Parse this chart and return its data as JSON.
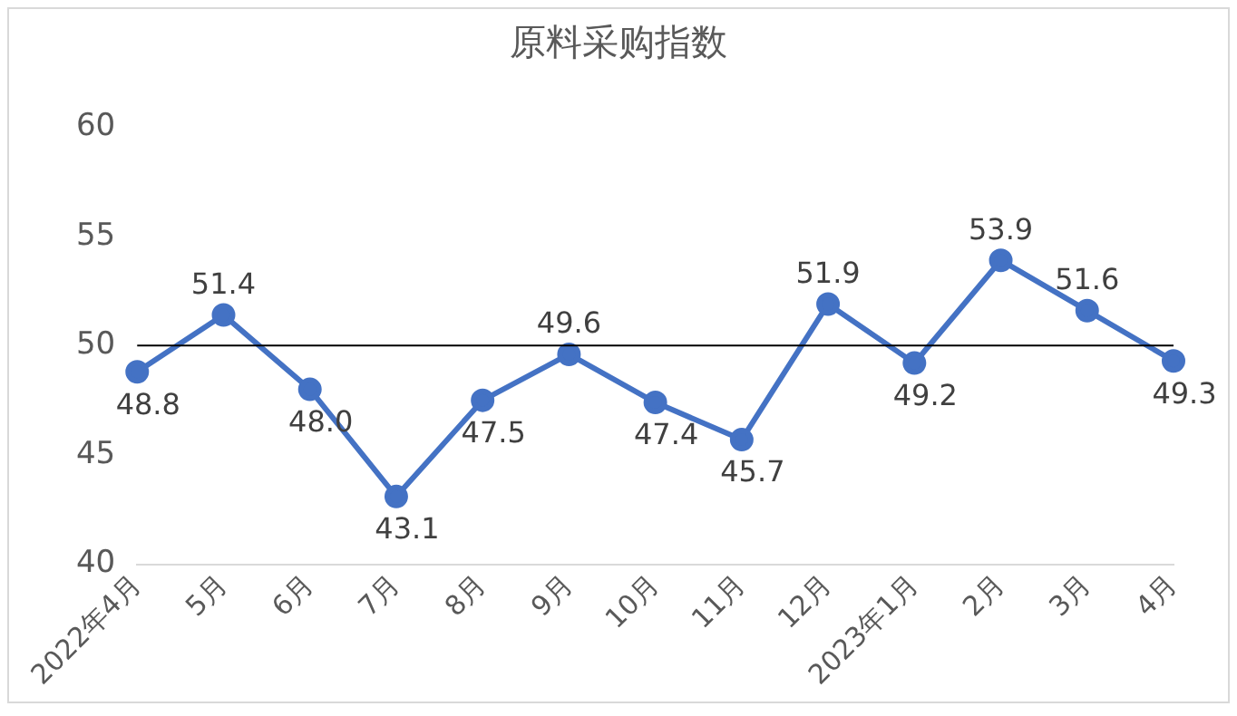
{
  "chart_data": {
    "type": "line",
    "title": "原料采购指数",
    "categories": [
      "2022年4月",
      "5月",
      "6月",
      "7月",
      "8月",
      "9月",
      "10月",
      "11月",
      "12月",
      "2023年1月",
      "2月",
      "3月",
      "4月"
    ],
    "values": [
      48.8,
      51.4,
      48.0,
      43.1,
      47.5,
      49.6,
      47.4,
      45.7,
      51.9,
      49.2,
      53.9,
      51.6,
      49.3
    ],
    "color": "#4472c4",
    "ylim": [
      40,
      60
    ],
    "yticks": [
      40,
      45,
      50,
      55,
      60
    ],
    "grid": false,
    "legend": false,
    "marker": "circle",
    "line_style": "solid",
    "value_labels": [
      "48.8",
      "51.4",
      "48.0",
      "43.1",
      "47.5",
      "49.6",
      "47.4",
      "45.7",
      "51.9",
      "49.2",
      "53.9",
      "51.6",
      "49.3"
    ],
    "ref_lines": [
      {
        "axis": "y",
        "value": 50,
        "color": "#000000"
      }
    ]
  }
}
